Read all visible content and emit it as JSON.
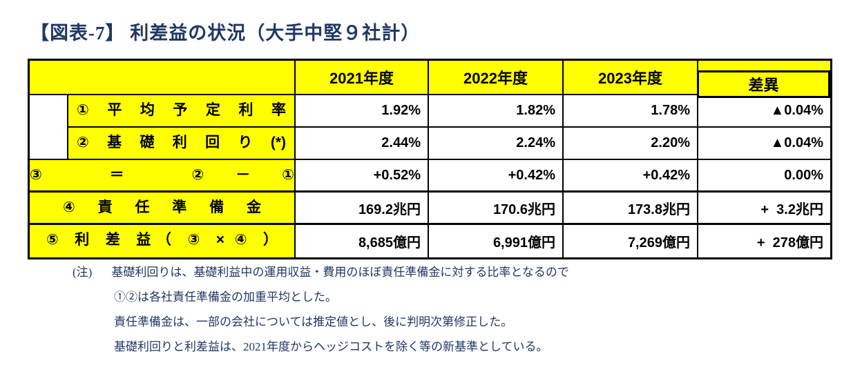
{
  "title": "【図表-7】 利差益の状況（大手中堅９社計）",
  "table": {
    "columns": [
      "2021年度",
      "2022年度",
      "2023年度",
      "差異"
    ],
    "rows": [
      {
        "label": "① 平 均 予 定 利 率",
        "values": [
          "1.92%",
          "1.82%",
          "1.78%",
          "▲0.04%"
        ]
      },
      {
        "label": "② 基 礎 利 回 り (*)",
        "values": [
          "2.44%",
          "2.24%",
          "2.20%",
          "▲0.04%"
        ]
      },
      {
        "label": "③ ＝ ②－①",
        "values": [
          "+0.52%",
          "+0.42%",
          "+0.42%",
          "0.00%"
        ]
      },
      {
        "label": "④ 責 任 準 備 金",
        "values": [
          "169.2兆円",
          "170.6兆円",
          "173.8兆円",
          "+  3.2兆円"
        ]
      },
      {
        "label": "⑤ 利 差 益（ ③ × ④ ）",
        "values": [
          "8,685億円",
          "6,991億円",
          "7,269億円",
          "+  278億円"
        ]
      }
    ]
  },
  "notes": {
    "marker": "(注)",
    "lines": [
      "基礎利回りは、基礎利益中の運用収益・費用のほぼ責任準備金に対する比率となるので",
      "①②は各社責任準備金の加重平均とした。",
      "責任準備金は、一部の会社については推定値とし、後に判明次第修正した。",
      "基礎利回りと利差益は、2021年度からヘッジコストを除く等の新基準としている。"
    ]
  },
  "colors": {
    "header_bg": "#FFFF00",
    "title_text": "#1F3864",
    "note_text": "#1F3864",
    "table_text": "#000000",
    "border": "#000000"
  }
}
